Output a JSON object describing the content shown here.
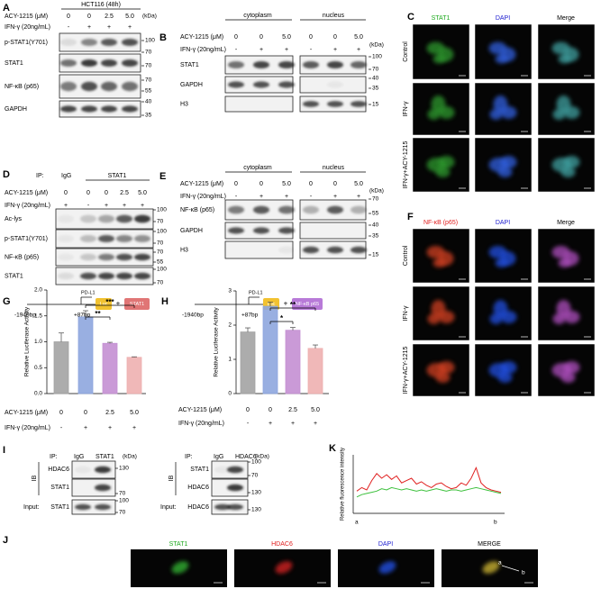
{
  "A": {
    "letter": "A",
    "title": "HCT116 (48h)",
    "acy_label": "ACY-1215 (μM)",
    "ifn_label": "IFN-γ (20ng/mL)",
    "acy": [
      "0",
      "0",
      "2.5",
      "5.0"
    ],
    "ifn": [
      "-",
      "+",
      "+",
      "+"
    ],
    "blots": [
      "p-STAT1(Y701)",
      "STAT1",
      "NF-κB (p65)",
      "GAPDH"
    ],
    "kda": "(kDa)",
    "markers": [
      "100",
      "70",
      "70",
      "70",
      "55",
      "40",
      "35"
    ]
  },
  "B": {
    "letter": "B",
    "fractions": [
      "cytoplasm",
      "nucleus"
    ],
    "acy_label": "ACY-1215 (μM)",
    "ifn_label": "IFN-γ (20ng/mL)",
    "acy": [
      "0",
      "0",
      "5.0",
      "0",
      "0",
      "5.0"
    ],
    "ifn": [
      "-",
      "+",
      "+",
      "-",
      "+",
      "+"
    ],
    "blots": [
      "STAT1",
      "GAPDH",
      "H3"
    ],
    "kda": "(kDa)",
    "markers": [
      "100",
      "70",
      "40",
      "35",
      "15"
    ]
  },
  "C": {
    "letter": "C",
    "channels": [
      "STAT1",
      "DAPI",
      "Merge"
    ],
    "conditions": [
      "Control",
      "IFN-γ",
      "IFN-γ+ACY-1215"
    ]
  },
  "D": {
    "letter": "D",
    "ip": "IP:",
    "ip_groups": [
      "IgG",
      "STAT1"
    ],
    "acy_label": "ACY-1215 (μM)",
    "ifn_label": "IFN-γ (20ng/mL)",
    "acy": [
      "0",
      "0",
      "0",
      "2.5",
      "5.0"
    ],
    "ifn": [
      "+",
      "-",
      "+",
      "+",
      "+"
    ],
    "blots": [
      "Ac-lys",
      "p-STAT1(Y701)",
      "NF-κB (p65)",
      "STAT1"
    ],
    "markers": [
      "100",
      "70",
      "100",
      "70",
      "70",
      "55",
      "100",
      "70"
    ]
  },
  "E": {
    "letter": "E",
    "fractions": [
      "cytoplasm",
      "nucleus"
    ],
    "acy_label": "ACY-1215 (μM)",
    "ifn_label": "IFN-γ (20ng/mL)",
    "acy": [
      "0",
      "0",
      "5.0",
      "0",
      "0",
      "5.0"
    ],
    "ifn": [
      "-",
      "+",
      "+",
      "-",
      "+",
      "+"
    ],
    "blots": [
      "NF-κB (p65)",
      "GAPDH",
      "H3"
    ],
    "kda": "(kDa)",
    "markers": [
      "70",
      "55",
      "40",
      "35",
      "15"
    ]
  },
  "F": {
    "letter": "F",
    "channels": [
      "NF-κB (p65)",
      "DAPI",
      "Merge"
    ],
    "conditions": [
      "Control",
      "IFN-γ",
      "IFN-γ+ACY-1215"
    ]
  },
  "I": {
    "letter": "I",
    "left": {
      "ip": "IP:",
      "ip_groups": [
        "IgG",
        "STAT1"
      ],
      "kda": "(kDa)",
      "ib": "IB",
      "blots": [
        "HDAC6",
        "STAT1"
      ],
      "input": "Input:",
      "input_blot": "STAT1",
      "markers": [
        "130",
        "70",
        "100",
        "70"
      ]
    },
    "right": {
      "ip": "IP:",
      "ip_groups": [
        "IgG",
        "HDAC6"
      ],
      "kda": "(kDa)",
      "ib": "IB",
      "blots": [
        "STAT1",
        "HDAC6"
      ],
      "input": "Input:",
      "input_blot": "HDAC6",
      "markers": [
        "100",
        "70",
        "130",
        "130"
      ]
    }
  },
  "J": {
    "letter": "J",
    "channels": [
      "STAT1",
      "HDAC6",
      "DAPI",
      "MERGE"
    ],
    "points": [
      "a",
      "b"
    ]
  },
  "chart_data": [
    {
      "type": "bar",
      "letter": "G",
      "construct": {
        "promoter": "PD-L1",
        "reporter": "Luc",
        "plus": "+",
        "factor": "STAT1",
        "start": "-1940bp",
        "end": "+87bp"
      },
      "ylabel": "Relative Luciferase Activity",
      "acy_label": "ACY-1215 (μM)",
      "acy": [
        "0",
        "0",
        "2.5",
        "5.0"
      ],
      "ifn_label": "IFN-γ (20ng/mL)",
      "ifn": [
        "-",
        "+",
        "+",
        "+"
      ],
      "values": [
        1.0,
        1.48,
        0.97,
        0.7
      ],
      "errors": [
        0.17,
        0.12,
        0.02,
        0.01
      ],
      "colors": [
        "#a3a3a3",
        "#8ea6de",
        "#c48fd3",
        "#eeb0b0"
      ],
      "ylim": [
        0,
        2
      ],
      "yticks": [
        {
          "value": 0,
          "label": "0.0"
        },
        {
          "value": 0.5,
          "label": "0.5"
        },
        {
          "value": 1,
          "label": "1.0"
        },
        {
          "value": 1.5,
          "label": "1.5"
        },
        {
          "value": 2,
          "label": "2.0"
        }
      ],
      "annotations": [
        "**",
        "***"
      ]
    },
    {
      "type": "bar",
      "letter": "H",
      "construct": {
        "promoter": "PD-L1",
        "reporter": "Luc",
        "plus": "+",
        "factor": "NF-κB p65",
        "start": "-1940bp",
        "end": "+87bp"
      },
      "ylabel": "Relative Luciferase Activity",
      "acy_label": "ACY-1215 (μM)",
      "acy": [
        "0",
        "0",
        "2.5",
        "5.0"
      ],
      "ifn_label": "IFN-γ (20ng/mL)",
      "ifn": [
        "-",
        "+",
        "+",
        "+"
      ],
      "values": [
        1.8,
        2.55,
        1.85,
        1.32
      ],
      "errors": [
        0.12,
        0.12,
        0.08,
        0.1
      ],
      "colors": [
        "#a3a3a3",
        "#8ea6de",
        "#c48fd3",
        "#eeb0b0"
      ],
      "ylim": [
        0,
        3
      ],
      "yticks": [
        0,
        1,
        2,
        3
      ],
      "annotations": [
        "*",
        "**"
      ]
    },
    {
      "type": "line",
      "letter": "K",
      "ylabel": "Relative fluorescence intensity",
      "x_labels": [
        "a",
        "b"
      ],
      "ylim": [
        0,
        250
      ],
      "series": [
        {
          "color": "#e02020",
          "values": [
            95,
            110,
            100,
            140,
            170,
            150,
            165,
            145,
            160,
            130,
            140,
            150,
            125,
            135,
            120,
            110,
            125,
            130,
            115,
            105,
            110,
            130,
            120,
            150,
            195,
            130,
            110,
            100,
            95,
            90
          ]
        },
        {
          "color": "#3cc03c",
          "values": [
            70,
            80,
            85,
            90,
            95,
            105,
            100,
            110,
            105,
            100,
            105,
            100,
            95,
            100,
            95,
            100,
            105,
            100,
            95,
            100,
            100,
            95,
            100,
            105,
            110,
            105,
            100,
            95,
            90,
            85
          ]
        }
      ]
    }
  ]
}
